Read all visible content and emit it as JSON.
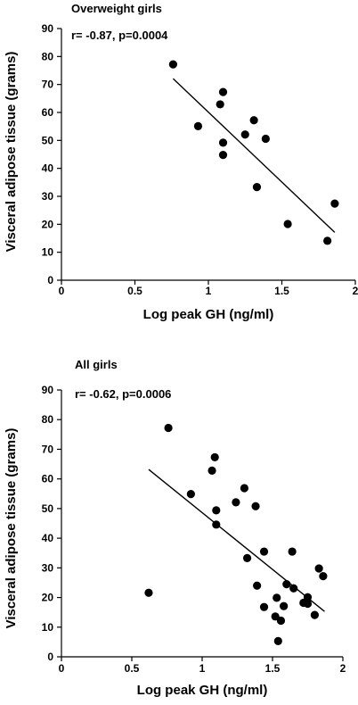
{
  "y_axis_label": "Visceral adipose tissue (grams)",
  "chart_data": [
    {
      "type": "scatter",
      "title": "Overweight girls",
      "stats_text": "r= -0.87, p=0.0004",
      "xlabel": "Log peak GH (ng/ml)",
      "xlim": [
        0,
        2
      ],
      "ylim": [
        0,
        90
      ],
      "x_ticks": [
        "0",
        "0.5",
        "1",
        "1.5",
        "2"
      ],
      "y_ticks": [
        "0",
        "10",
        "20",
        "30",
        "40",
        "50",
        "60",
        "70",
        "80",
        "90"
      ],
      "points": [
        {
          "x": 0.76,
          "y": 77.2
        },
        {
          "x": 0.93,
          "y": 55.1
        },
        {
          "x": 1.08,
          "y": 62.9
        },
        {
          "x": 1.1,
          "y": 67.3
        },
        {
          "x": 1.1,
          "y": 49.2
        },
        {
          "x": 1.1,
          "y": 44.8
        },
        {
          "x": 1.25,
          "y": 52.1
        },
        {
          "x": 1.31,
          "y": 57.2
        },
        {
          "x": 1.39,
          "y": 50.6
        },
        {
          "x": 1.33,
          "y": 33.3
        },
        {
          "x": 1.54,
          "y": 20.1
        },
        {
          "x": 1.81,
          "y": 14.1
        },
        {
          "x": 1.86,
          "y": 27.4
        }
      ],
      "trendline": {
        "x1": 0.76,
        "y1": 72.1,
        "x2": 1.86,
        "y2": 17.1
      }
    },
    {
      "type": "scatter",
      "title": "All girls",
      "stats_text": "r= -0.62, p=0.0006",
      "xlabel": "Log peak  GH (ng/ml)",
      "xlim": [
        0,
        2
      ],
      "ylim": [
        0,
        90
      ],
      "x_ticks": [
        "0",
        "0.5",
        "1",
        "1.5",
        "2"
      ],
      "y_ticks": [
        "0",
        "10",
        "20",
        "30",
        "40",
        "50",
        "60",
        "70",
        "80",
        "90"
      ],
      "points": [
        {
          "x": 0.62,
          "y": 21.6
        },
        {
          "x": 0.76,
          "y": 77.2
        },
        {
          "x": 0.92,
          "y": 54.9
        },
        {
          "x": 1.07,
          "y": 62.8
        },
        {
          "x": 1.09,
          "y": 67.3
        },
        {
          "x": 1.1,
          "y": 49.4
        },
        {
          "x": 1.1,
          "y": 44.6
        },
        {
          "x": 1.24,
          "y": 52.1
        },
        {
          "x": 1.3,
          "y": 56.9
        },
        {
          "x": 1.38,
          "y": 50.8
        },
        {
          "x": 1.32,
          "y": 33.3
        },
        {
          "x": 1.39,
          "y": 24.0
        },
        {
          "x": 1.44,
          "y": 35.5
        },
        {
          "x": 1.44,
          "y": 16.8
        },
        {
          "x": 1.52,
          "y": 13.6
        },
        {
          "x": 1.53,
          "y": 19.9
        },
        {
          "x": 1.54,
          "y": 5.3
        },
        {
          "x": 1.56,
          "y": 12.2
        },
        {
          "x": 1.58,
          "y": 17.1
        },
        {
          "x": 1.6,
          "y": 24.5
        },
        {
          "x": 1.64,
          "y": 35.5
        },
        {
          "x": 1.65,
          "y": 23.1
        },
        {
          "x": 1.72,
          "y": 18.2
        },
        {
          "x": 1.75,
          "y": 17.9
        },
        {
          "x": 1.75,
          "y": 20.1
        },
        {
          "x": 1.8,
          "y": 14.1
        },
        {
          "x": 1.83,
          "y": 29.8
        },
        {
          "x": 1.86,
          "y": 27.2
        }
      ],
      "trendline": {
        "x1": 0.62,
        "y1": 63.2,
        "x2": 1.87,
        "y2": 15.3
      }
    }
  ]
}
